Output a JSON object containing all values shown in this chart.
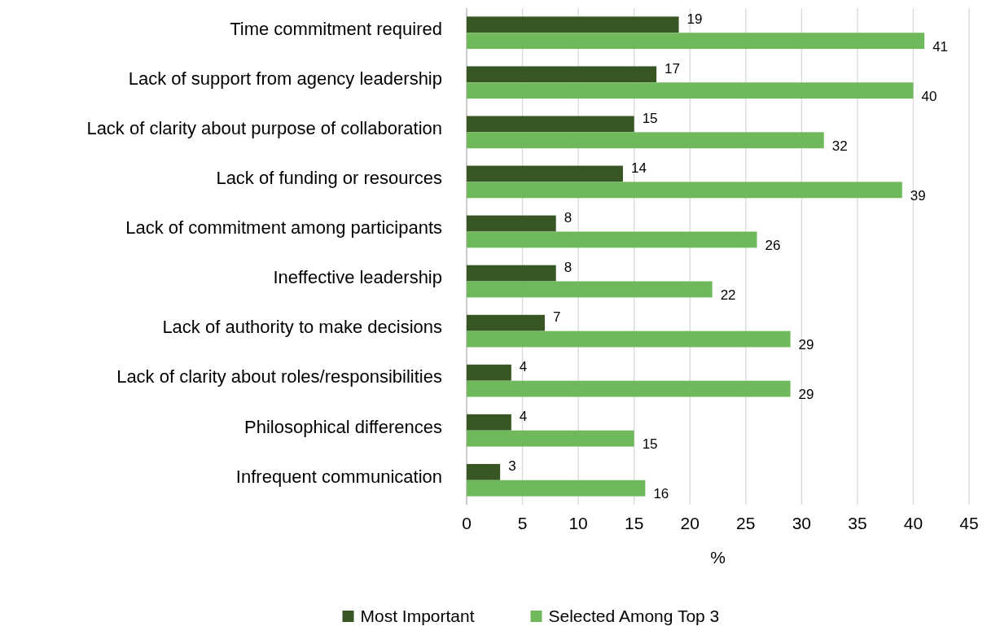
{
  "chart_data": {
    "type": "bar",
    "orientation": "horizontal",
    "xlabel": "%",
    "categories": [
      "Time commitment required",
      "Lack of support from agency leadership",
      "Lack of clarity about purpose of collaboration",
      "Lack of funding or resources",
      "Lack of commitment among participants",
      "Ineffective leadership",
      "Lack of authority to make decisions",
      "Lack of clarity about roles/responsibilities",
      "Philosophical differences",
      "Infrequent communication"
    ],
    "series": [
      {
        "name": "Most Important",
        "color": "#375623",
        "values": [
          19,
          17,
          15,
          14,
          8,
          8,
          7,
          4,
          4,
          3
        ]
      },
      {
        "name": "Selected Among Top 3",
        "color": "#70b85c",
        "values": [
          41,
          40,
          32,
          39,
          26,
          22,
          29,
          29,
          15,
          16
        ]
      }
    ],
    "xlim": [
      0,
      45
    ],
    "xticks": [
      0,
      5,
      10,
      15,
      20,
      25,
      30,
      35,
      40,
      45
    ],
    "grid": "x",
    "legend": "bottom",
    "data_labels": true
  }
}
